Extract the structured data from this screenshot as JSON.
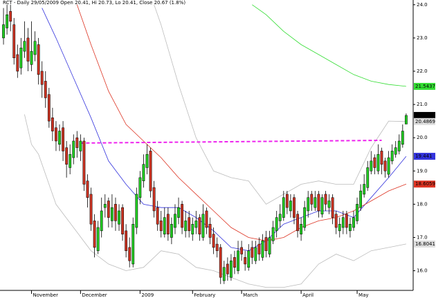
{
  "chart_data": {
    "type": "candlestick",
    "title": "RCT - Daily 29/05/2009 Open 20.41, Hi 20.73, Lo 20.41, Close 20.67 (1.8%)",
    "up_color": "#22cc22",
    "down_color": "#cc3322",
    "xlim": [
      -1,
      117
    ],
    "xticks": [
      {
        "value": 8,
        "label": "November"
      },
      {
        "value": 22,
        "label": "December"
      },
      {
        "value": 39,
        "label": "2009"
      },
      {
        "value": 54,
        "label": "February"
      },
      {
        "value": 68,
        "label": "March"
      },
      {
        "value": 85,
        "label": "April"
      },
      {
        "value": 101,
        "label": "May"
      }
    ],
    "ylim": [
      15.45,
      24.1
    ],
    "yticks": [
      {
        "value": 24,
        "label": "24.0"
      },
      {
        "value": 23,
        "label": "23.0"
      },
      {
        "value": 22,
        "label": "22.0"
      },
      {
        "value": 21,
        "label": "21.0"
      },
      {
        "value": 20,
        "label": "20.0"
      },
      {
        "value": 19,
        "label": "19.0"
      },
      {
        "value": 18,
        "label": "18.0"
      },
      {
        "value": 17,
        "label": "17.0"
      },
      {
        "value": 16,
        "label": "16.0"
      }
    ],
    "open": [
      23.0,
      23.3,
      23.8,
      23.4,
      22.5,
      22.1,
      22.6,
      23.0,
      22.2,
      22.5,
      22.8,
      22.0,
      21.7,
      21.3,
      20.6,
      20.3,
      19.8,
      20.3,
      19.7,
      19.1,
      19.4,
      20.0,
      19.6,
      19.9,
      18.7,
      18.3,
      17.5,
      16.6,
      17.2,
      17.9,
      18.1,
      17.5,
      18.0,
      17.4,
      17.9,
      17.2,
      16.7,
      16.2,
      17.3,
      18.2,
      18.7,
      19.1,
      19.6,
      18.5,
      17.9,
      17.5,
      17.1,
      17.7,
      17.0,
      17.3,
      17.6,
      18.0,
      17.2,
      17.6,
      17.1,
      17.3,
      17.6,
      17.0,
      17.8,
      17.4,
      17.1,
      16.8,
      16.7,
      15.7,
      16.2,
      15.8,
      16.4,
      16.0,
      16.7,
      16.4,
      16.1,
      16.7,
      16.3,
      16.8,
      16.4,
      17.0,
      16.5,
      16.9,
      17.2,
      17.5,
      17.6,
      18.3,
      17.8,
      18.2,
      17.7,
      17.1,
      17.3,
      17.8,
      18.3,
      17.9,
      18.3,
      17.7,
      18.3,
      17.9,
      18.2,
      17.7,
      17.2,
      17.3,
      17.7,
      17.2,
      17.3,
      17.5,
      17.9,
      18.3,
      18.5,
      19.0,
      19.4,
      19.0,
      19.6,
      19.3,
      18.9,
      19.3,
      19.5,
      19.6,
      19.8,
      20.41
    ],
    "high": [
      23.9,
      24.0,
      24.0,
      23.6,
      22.8,
      23.0,
      23.5,
      23.3,
      23.5,
      23.2,
      23.0,
      22.3,
      22.0,
      21.5,
      20.9,
      20.5,
      20.4,
      20.5,
      19.9,
      19.8,
      20.1,
      20.2,
      20.1,
      20.0,
      18.9,
      18.5,
      17.7,
      17.5,
      18.2,
      18.3,
      18.2,
      18.3,
      18.2,
      18.0,
      18.0,
      17.4,
      17.0,
      17.6,
      18.5,
      19.0,
      19.5,
      19.8,
      19.7,
      18.7,
      18.1,
      17.8,
      17.9,
      17.9,
      17.6,
      18.0,
      18.2,
      18.1,
      17.8,
      17.8,
      17.6,
      17.8,
      17.7,
      18.0,
      17.9,
      17.6,
      17.3,
      17.0,
      16.8,
      16.3,
      16.4,
      16.5,
      16.6,
      16.9,
      16.9,
      16.6,
      16.8,
      16.9,
      16.9,
      17.0,
      17.1,
      17.2,
      17.2,
      17.5,
      17.8,
      18.0,
      18.4,
      18.4,
      18.3,
      18.3,
      17.8,
      17.6,
      18.1,
      18.4,
      18.4,
      18.4,
      18.4,
      18.3,
      18.4,
      18.3,
      18.3,
      17.8,
      17.6,
      17.8,
      17.8,
      17.6,
      17.8,
      18.2,
      18.6,
      18.9,
      19.3,
      19.6,
      19.5,
      19.8,
      19.7,
      19.4,
      19.6,
      19.8,
      19.9,
      20.1,
      20.4,
      20.73
    ],
    "low": [
      22.8,
      23.1,
      23.2,
      22.2,
      21.8,
      21.9,
      22.4,
      22.0,
      22.0,
      22.3,
      21.6,
      21.2,
      20.9,
      20.3,
      19.9,
      19.6,
      19.6,
      19.3,
      18.8,
      18.9,
      19.2,
      19.4,
      19.3,
      18.4,
      17.9,
      17.2,
      16.4,
      16.5,
      17.0,
      17.6,
      17.3,
      17.3,
      17.2,
      17.2,
      16.9,
      16.4,
      16.1,
      16.1,
      17.1,
      18.0,
      18.5,
      18.9,
      18.2,
      17.6,
      17.2,
      17.0,
      17.0,
      16.9,
      16.8,
      17.1,
      17.4,
      17.1,
      17.0,
      17.0,
      16.9,
      17.1,
      16.9,
      16.9,
      17.1,
      16.8,
      16.5,
      16.4,
      15.6,
      15.6,
      15.7,
      15.7,
      15.9,
      15.9,
      16.3,
      16.0,
      16.0,
      16.2,
      16.2,
      16.3,
      16.3,
      16.4,
      16.4,
      16.8,
      17.0,
      17.3,
      17.5,
      17.7,
      17.6,
      17.4,
      17.0,
      16.9,
      17.2,
      17.6,
      17.8,
      17.8,
      17.6,
      17.6,
      17.8,
      17.7,
      17.4,
      17.1,
      17.0,
      17.1,
      17.1,
      17.0,
      17.2,
      17.4,
      17.8,
      18.2,
      18.4,
      18.9,
      18.9,
      18.9,
      18.9,
      18.8,
      18.8,
      19.2,
      19.4,
      19.5,
      19.7,
      20.41
    ],
    "close": [
      23.4,
      23.7,
      23.5,
      22.4,
      22.0,
      22.7,
      22.9,
      22.3,
      22.6,
      22.9,
      21.9,
      21.6,
      21.2,
      20.5,
      20.2,
      19.9,
      20.2,
      19.6,
      19.2,
      19.5,
      19.9,
      19.7,
      19.9,
      18.6,
      18.2,
      17.4,
      16.7,
      17.3,
      17.8,
      18.0,
      17.6,
      17.9,
      17.5,
      17.8,
      17.1,
      16.6,
      16.3,
      17.4,
      18.3,
      18.8,
      19.2,
      19.5,
      18.4,
      17.8,
      17.4,
      17.2,
      17.6,
      17.1,
      17.4,
      17.7,
      17.9,
      17.3,
      17.5,
      17.2,
      17.4,
      17.5,
      17.1,
      17.7,
      17.3,
      17.0,
      16.7,
      16.6,
      15.8,
      16.1,
      15.9,
      16.3,
      16.1,
      16.6,
      16.5,
      16.2,
      16.6,
      16.4,
      16.7,
      16.5,
      16.9,
      16.6,
      17.0,
      17.3,
      17.6,
      17.7,
      18.2,
      17.9,
      18.1,
      17.6,
      17.2,
      17.4,
      17.9,
      18.2,
      18.0,
      18.2,
      17.8,
      18.2,
      18.0,
      18.1,
      17.6,
      17.3,
      17.4,
      17.6,
      17.3,
      17.4,
      17.6,
      18.0,
      18.4,
      18.6,
      19.1,
      19.3,
      19.1,
      19.5,
      19.2,
      19.0,
      19.4,
      19.6,
      19.7,
      19.9,
      20.2,
      20.67
    ],
    "overlays": [
      {
        "color": "#3333dd",
        "style": "solid",
        "x": [
          11,
          15,
          20,
          25,
          30,
          35,
          40,
          45,
          50,
          55,
          60,
          65,
          70,
          75,
          80,
          85,
          90,
          95,
          100,
          105,
          110,
          115
        ],
        "values": [
          23.9,
          23.0,
          21.8,
          20.6,
          19.3,
          18.6,
          18.0,
          17.9,
          17.9,
          17.6,
          17.2,
          16.7,
          16.6,
          16.9,
          17.4,
          17.6,
          17.8,
          17.8,
          17.6,
          18.2,
          18.8,
          19.441
        ]
      },
      {
        "color": "#dd3322",
        "style": "solid",
        "x": [
          21,
          25,
          30,
          35,
          40,
          45,
          50,
          55,
          60,
          65,
          70,
          75,
          80,
          85,
          90,
          95,
          100,
          105,
          110,
          115
        ],
        "values": [
          24.0,
          22.8,
          21.4,
          20.4,
          19.9,
          19.4,
          18.8,
          18.3,
          17.8,
          17.3,
          17.0,
          16.9,
          17.0,
          17.3,
          17.5,
          17.6,
          17.8,
          18.1,
          18.4,
          18.6059
        ]
      },
      {
        "color": "#33dd33",
        "style": "solid",
        "x": [
          71,
          75,
          80,
          85,
          90,
          95,
          100,
          105,
          110,
          115
        ],
        "values": [
          24.0,
          23.7,
          23.2,
          22.8,
          22.5,
          22.2,
          21.9,
          21.7,
          21.6,
          21.5437
        ]
      },
      {
        "color": "#bbbbbb",
        "style": "solid",
        "x": [
          43,
          45,
          50,
          55,
          60,
          65,
          70,
          75,
          80,
          85,
          90,
          95,
          100,
          105,
          110,
          115
        ],
        "values": [
          24.0,
          23.4,
          21.6,
          20.0,
          19.0,
          18.8,
          18.7,
          18.0,
          18.3,
          18.6,
          18.7,
          18.6,
          18.6,
          19.7,
          20.5,
          20.4869
        ]
      },
      {
        "color": "#bbbbbb",
        "style": "solid",
        "x": [
          6,
          8,
          10,
          15,
          20,
          25,
          30,
          35,
          40,
          45,
          50,
          55,
          60,
          65,
          70,
          75,
          80,
          85,
          90,
          95,
          100,
          105,
          110,
          115
        ],
        "values": [
          20.7,
          19.8,
          19.5,
          18.0,
          17.3,
          16.6,
          16.2,
          16.0,
          16.1,
          16.6,
          16.5,
          16.1,
          16.0,
          15.8,
          15.6,
          15.5,
          15.5,
          15.6,
          16.2,
          16.5,
          16.3,
          16.6,
          16.7,
          16.8041
        ]
      },
      {
        "color": "#ee22ee",
        "style": "dashed",
        "x": [
          22,
          108
        ],
        "values": [
          19.84,
          19.92
        ]
      }
    ],
    "value_boxes": [
      {
        "value": 21.5437,
        "color": "#33dd33"
      },
      {
        "value": 20.67,
        "color": "#000000"
      },
      {
        "value": 20.4869,
        "color": "#dddddd"
      },
      {
        "value": 19.441,
        "color": "#3333dd"
      },
      {
        "value": 18.6059,
        "color": "#dd3322"
      },
      {
        "value": 16.8041,
        "color": "#dddddd"
      }
    ]
  }
}
